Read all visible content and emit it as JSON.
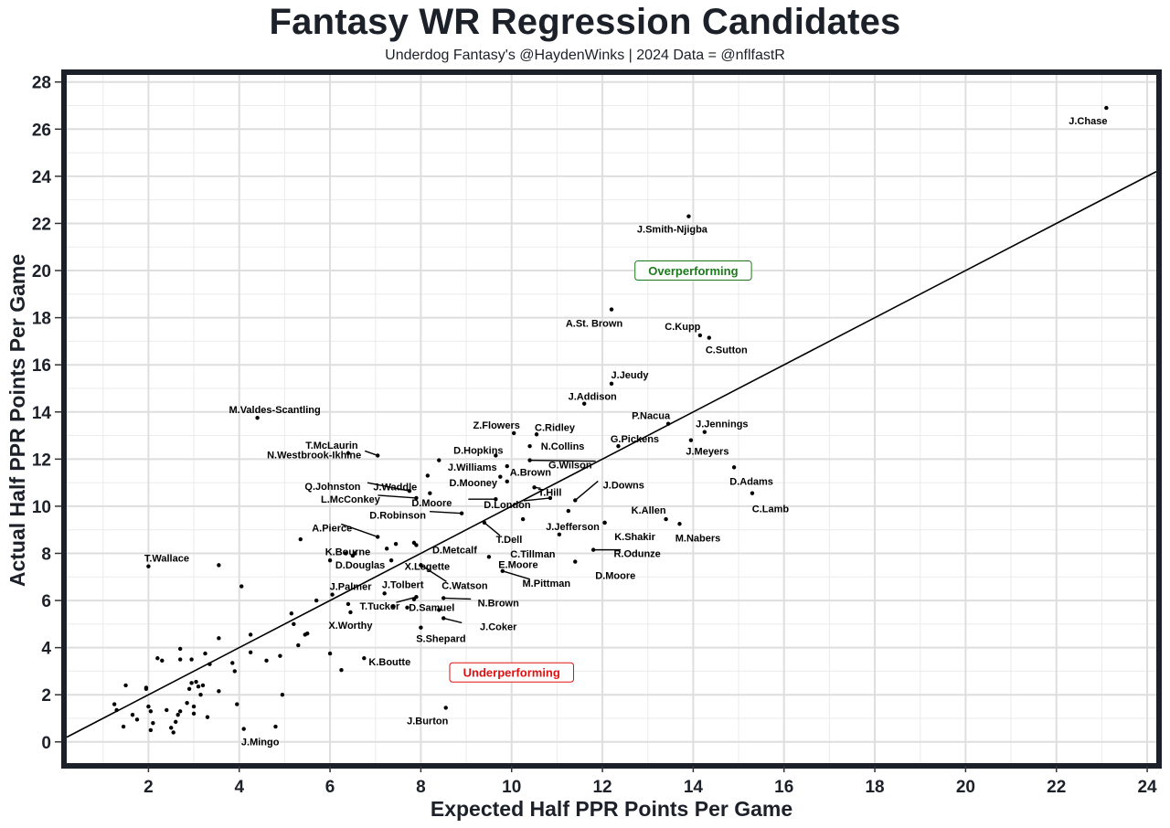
{
  "chart_data": {
    "type": "scatter",
    "title": "Fantasy WR Regression Candidates",
    "subtitle": "Underdog Fantasy's @HaydenWinks | 2024 Data = @nflfastR",
    "xlabel": "Expected Half PPR Points Per Game",
    "ylabel": "Actual Half PPR Points Per Game",
    "xlim": [
      0.2,
      24.2
    ],
    "ylim": [
      -0.9,
      28.3
    ],
    "xticks": [
      2,
      4,
      6,
      8,
      10,
      12,
      14,
      16,
      18,
      20,
      22,
      24
    ],
    "yticks": [
      0,
      2,
      4,
      6,
      8,
      10,
      12,
      14,
      16,
      18,
      20,
      22,
      24,
      26,
      28
    ],
    "grid": true,
    "reference_line": {
      "slope": 1,
      "intercept": 0
    },
    "annotations": [
      {
        "text": "Overperforming",
        "x": 14.0,
        "y": 20.0,
        "color": "#1a7a1a"
      },
      {
        "text": "Underperforming",
        "x": 10.0,
        "y": 2.95,
        "color": "#e01010"
      }
    ],
    "labeled_points": [
      {
        "name": "J.Chase",
        "x": 23.1,
        "y": 26.9
      },
      {
        "name": "J.Smith-Njigba",
        "x": 13.9,
        "y": 22.3
      },
      {
        "name": "A.St. Brown",
        "x": 12.2,
        "y": 18.35
      },
      {
        "name": "C.Kupp",
        "x": 14.15,
        "y": 17.25
      },
      {
        "name": "C.Sutton",
        "x": 14.35,
        "y": 17.15
      },
      {
        "name": "J.Jeudy",
        "x": 12.2,
        "y": 15.2
      },
      {
        "name": "J.Addison",
        "x": 11.6,
        "y": 14.35
      },
      {
        "name": "M.Valdes-Scantling",
        "x": 4.4,
        "y": 13.75
      },
      {
        "name": "P.Nacua",
        "x": 13.45,
        "y": 13.5
      },
      {
        "name": "J.Jennings",
        "x": 14.25,
        "y": 13.15
      },
      {
        "name": "Z.Flowers",
        "x": 10.05,
        "y": 13.1
      },
      {
        "name": "C.Ridley",
        "x": 10.55,
        "y": 13.05
      },
      {
        "name": "J.Meyers",
        "x": 13.95,
        "y": 12.8
      },
      {
        "name": "G.Pickens",
        "x": 12.35,
        "y": 12.55
      },
      {
        "name": "N.Collins",
        "x": 10.4,
        "y": 12.55
      },
      {
        "name": "T.McLaurin",
        "x": 6.4,
        "y": 12.25
      },
      {
        "name": "N.Westbrook-Ikhine",
        "x": 7.05,
        "y": 12.15
      },
      {
        "name": "D.Hopkins",
        "x": 9.65,
        "y": 12.15
      },
      {
        "name": "G.Wilson",
        "x": 10.4,
        "y": 11.95
      },
      {
        "name": "J.Williams",
        "x": 9.9,
        "y": 11.7
      },
      {
        "name": "D.Adams",
        "x": 14.9,
        "y": 11.65
      },
      {
        "name": "A.Brown",
        "x": 9.75,
        "y": 11.25
      },
      {
        "name": "D.Mooney",
        "x": 9.9,
        "y": 11.05
      },
      {
        "name": "J.Waddle",
        "x": 8.2,
        "y": 10.55
      },
      {
        "name": "Q.Johnston",
        "x": 7.75,
        "y": 10.65
      },
      {
        "name": "T.Hill",
        "x": 10.5,
        "y": 10.8
      },
      {
        "name": "J.Downs",
        "x": 11.4,
        "y": 10.25
      },
      {
        "name": "C.Lamb",
        "x": 15.3,
        "y": 10.55
      },
      {
        "name": "L.McConkey",
        "x": 7.9,
        "y": 10.35
      },
      {
        "name": "D.Moore",
        "x": 9.65,
        "y": 10.3
      },
      {
        "name": "D.London",
        "x": 10.85,
        "y": 10.35
      },
      {
        "name": "K.Allen",
        "x": 13.4,
        "y": 9.45
      },
      {
        "name": "D.Robinson",
        "x": 8.9,
        "y": 9.7
      },
      {
        "name": "J.Jefferson",
        "x": 12.05,
        "y": 9.3
      },
      {
        "name": "M.Nabers",
        "x": 13.7,
        "y": 9.25
      },
      {
        "name": "T.Dell",
        "x": 9.4,
        "y": 9.3
      },
      {
        "name": "K.Shakir",
        "x": 12.05,
        "y": 9.3
      },
      {
        "name": "A.Pierce",
        "x": 7.05,
        "y": 8.7
      },
      {
        "name": "C.Tillman",
        "x": 11.05,
        "y": 8.8
      },
      {
        "name": "D.Metcalf",
        "x": 7.9,
        "y": 8.35
      },
      {
        "name": "K.Bourne",
        "x": 6.35,
        "y": 8.0
      },
      {
        "name": "R.Odunze",
        "x": 11.8,
        "y": 8.15
      },
      {
        "name": "E.Moore",
        "x": 9.5,
        "y": 7.85
      },
      {
        "name": "D.Douglas",
        "x": 6.0,
        "y": 7.7
      },
      {
        "name": "X.Legette",
        "x": 8.0,
        "y": 7.5
      },
      {
        "name": "D.Moore",
        "x": 11.4,
        "y": 7.65
      },
      {
        "name": "C.Watson",
        "x": 8.0,
        "y": 7.5
      },
      {
        "name": "M.Pittman",
        "x": 9.8,
        "y": 7.25
      },
      {
        "name": "T.Wallace",
        "x": 2.0,
        "y": 7.45
      },
      {
        "name": "J.Tolbert",
        "x": 7.2,
        "y": 6.3
      },
      {
        "name": "J.Palmer",
        "x": 6.05,
        "y": 6.25
      },
      {
        "name": "N.Brown",
        "x": 8.5,
        "y": 6.1
      },
      {
        "name": "T.Tucker",
        "x": 7.9,
        "y": 6.15
      },
      {
        "name": "X.Worthy",
        "x": 6.45,
        "y": 5.5
      },
      {
        "name": "D.Samuel",
        "x": 8.4,
        "y": 5.6
      },
      {
        "name": "J.Coker",
        "x": 8.5,
        "y": 5.25
      },
      {
        "name": "S.Shepard",
        "x": 8.0,
        "y": 4.85
      },
      {
        "name": "K.Boutte",
        "x": 6.75,
        "y": 3.55
      },
      {
        "name": "J.Burton",
        "x": 8.55,
        "y": 1.45
      },
      {
        "name": "J.Mingo",
        "x": 4.1,
        "y": 0.55
      }
    ],
    "unlabeled_points": [
      [
        3.55,
        7.5
      ],
      [
        4.05,
        6.6
      ],
      [
        5.35,
        8.6
      ],
      [
        5.7,
        6.0
      ],
      [
        5.15,
        5.45
      ],
      [
        5.2,
        5.0
      ],
      [
        5.5,
        4.6
      ],
      [
        5.45,
        4.55
      ],
      [
        5.3,
        4.1
      ],
      [
        6.0,
        3.75
      ],
      [
        6.25,
        3.05
      ],
      [
        6.4,
        5.85
      ],
      [
        6.5,
        7.9
      ],
      [
        6.55,
        8.0
      ],
      [
        7.25,
        8.2
      ],
      [
        7.45,
        8.4
      ],
      [
        7.85,
        8.45
      ],
      [
        7.35,
        7.7
      ],
      [
        7.7,
        5.7
      ],
      [
        7.4,
        5.75
      ],
      [
        7.85,
        6.05
      ],
      [
        8.15,
        11.3
      ],
      [
        8.4,
        11.95
      ],
      [
        10.25,
        9.45
      ],
      [
        11.25,
        9.8
      ],
      [
        4.9,
        3.65
      ],
      [
        4.95,
        2.0
      ],
      [
        4.6,
        3.45
      ],
      [
        4.25,
        3.8
      ],
      [
        4.25,
        4.55
      ],
      [
        3.55,
        4.4
      ],
      [
        3.55,
        2.15
      ],
      [
        3.85,
        3.35
      ],
      [
        3.9,
        3.0
      ],
      [
        3.95,
        1.6
      ],
      [
        4.8,
        0.65
      ],
      [
        3.35,
        3.3
      ],
      [
        3.3,
        1.05
      ],
      [
        3.25,
        3.75
      ],
      [
        3.2,
        2.4
      ],
      [
        3.15,
        2.0
      ],
      [
        3.1,
        2.35
      ],
      [
        3.05,
        2.55
      ],
      [
        3.0,
        1.5
      ],
      [
        3.0,
        1.2
      ],
      [
        2.95,
        2.5
      ],
      [
        2.95,
        3.5
      ],
      [
        2.9,
        2.25
      ],
      [
        2.85,
        1.65
      ],
      [
        2.7,
        3.95
      ],
      [
        2.7,
        3.5
      ],
      [
        2.7,
        1.3
      ],
      [
        2.65,
        1.15
      ],
      [
        2.6,
        0.85
      ],
      [
        2.55,
        0.4
      ],
      [
        2.5,
        0.6
      ],
      [
        2.4,
        1.35
      ],
      [
        2.3,
        3.45
      ],
      [
        2.2,
        3.55
      ],
      [
        2.1,
        0.8
      ],
      [
        2.05,
        0.5
      ],
      [
        2.05,
        1.3
      ],
      [
        2.0,
        1.5
      ],
      [
        1.95,
        2.3
      ],
      [
        1.95,
        2.25
      ],
      [
        1.75,
        0.95
      ],
      [
        1.65,
        1.15
      ],
      [
        1.5,
        2.4
      ],
      [
        1.45,
        0.65
      ],
      [
        1.3,
        1.35
      ],
      [
        1.25,
        1.6
      ]
    ]
  }
}
